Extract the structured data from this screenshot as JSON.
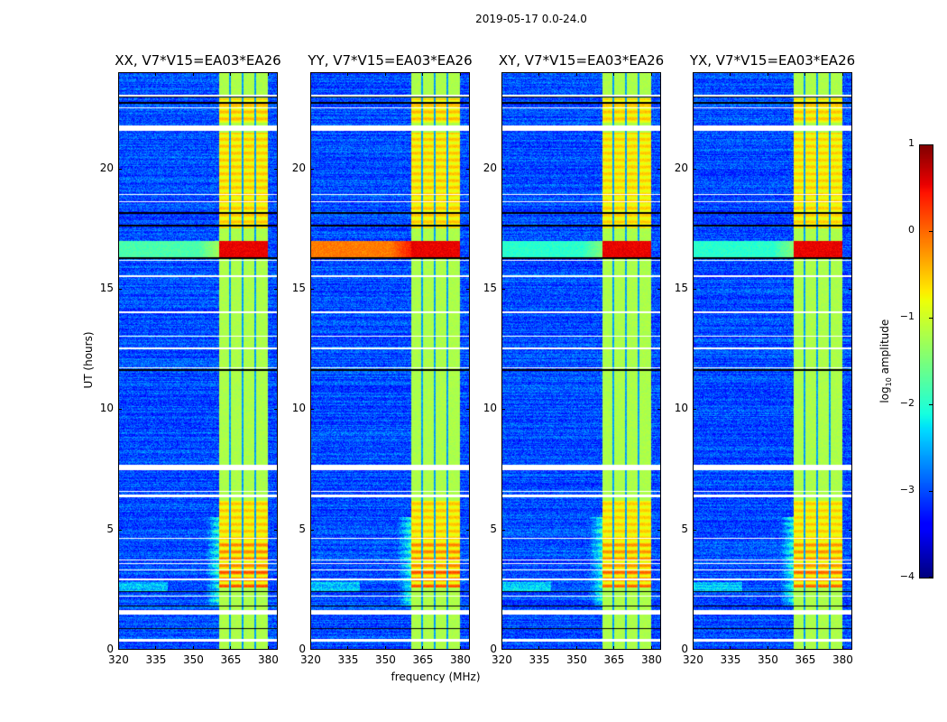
{
  "figure_title": "2019-05-17 0.0-24.0",
  "chart_data": {
    "type": "heatmap",
    "title": "2019-05-17 0.0-24.0",
    "xlabel": "frequency (MHz)",
    "ylabel": "UT (hours)",
    "xlim": [
      320,
      384
    ],
    "ylim": [
      0,
      24
    ],
    "xticks": [
      320,
      335,
      350,
      365,
      380
    ],
    "yticks": [
      0,
      5,
      10,
      15,
      20
    ],
    "panels": [
      {
        "title": "XX, V7*V15=EA03*EA26",
        "rfi_16h_outside_band_level": -1.8
      },
      {
        "title": "YY, V7*V15=EA03*EA26",
        "rfi_16h_outside_band_level": -0.1
      },
      {
        "title": "XY, V7*V15=EA03*EA26",
        "rfi_16h_outside_band_level": -2.0
      },
      {
        "title": "YX, V7*V15=EA03*EA26",
        "rfi_16h_outside_band_level": -2.0
      }
    ],
    "background_level": -3.0,
    "band_mhz": [
      360.5,
      380
    ],
    "band_level": -1.2,
    "band_gaps_mhz": [
      365,
      370,
      375
    ],
    "bright_periods_ut": [
      [
        2.6,
        3.4,
        1.1
      ],
      [
        3.4,
        4.5,
        0.8
      ],
      [
        4.5,
        6.2,
        0.45
      ],
      [
        17.5,
        21.5,
        0.45
      ],
      [
        21.9,
        22.9,
        0.5
      ]
    ],
    "rfi_period_ut": [
      16.3,
      17.0
    ],
    "flagged_rows_ut": [
      [
        0.35,
        0.45
      ],
      [
        1.45,
        1.65
      ],
      [
        2.2,
        2.25
      ],
      [
        2.9,
        2.95
      ],
      [
        3.3,
        3.35
      ],
      [
        3.55,
        3.6
      ],
      [
        3.7,
        3.75
      ],
      [
        4.6,
        4.65
      ],
      [
        6.35,
        6.45
      ],
      [
        6.55,
        6.6
      ],
      [
        7.45,
        7.7
      ],
      [
        11.7,
        11.75
      ],
      [
        12.5,
        12.55
      ],
      [
        13.0,
        13.05
      ],
      [
        14.0,
        14.05
      ],
      [
        15.5,
        15.55
      ],
      [
        16.15,
        16.2
      ],
      [
        18.6,
        18.65
      ],
      [
        18.9,
        18.95
      ],
      [
        21.55,
        21.8
      ],
      [
        22.5,
        22.55
      ],
      [
        23.0,
        23.05
      ]
    ],
    "blank_rows_ut": [
      [
        0.85,
        0.9
      ],
      [
        1.8,
        1.85
      ],
      [
        2.4,
        2.45
      ],
      [
        11.6,
        11.65
      ],
      [
        16.25,
        16.3
      ],
      [
        17.6,
        17.65
      ],
      [
        18.1,
        18.2
      ],
      [
        22.7,
        22.75
      ],
      [
        22.95,
        23.0
      ]
    ],
    "colorbar": {
      "label_prefix": "log",
      "label_sub": "10",
      "label_suffix": " amplitude",
      "range": [
        -4,
        1
      ],
      "ticks": [
        1,
        0,
        -1,
        -2,
        -3,
        -4
      ],
      "tick_labels": [
        "1",
        "0",
        "−1",
        "−2",
        "−3",
        "−4"
      ],
      "colormap": "jet"
    }
  }
}
